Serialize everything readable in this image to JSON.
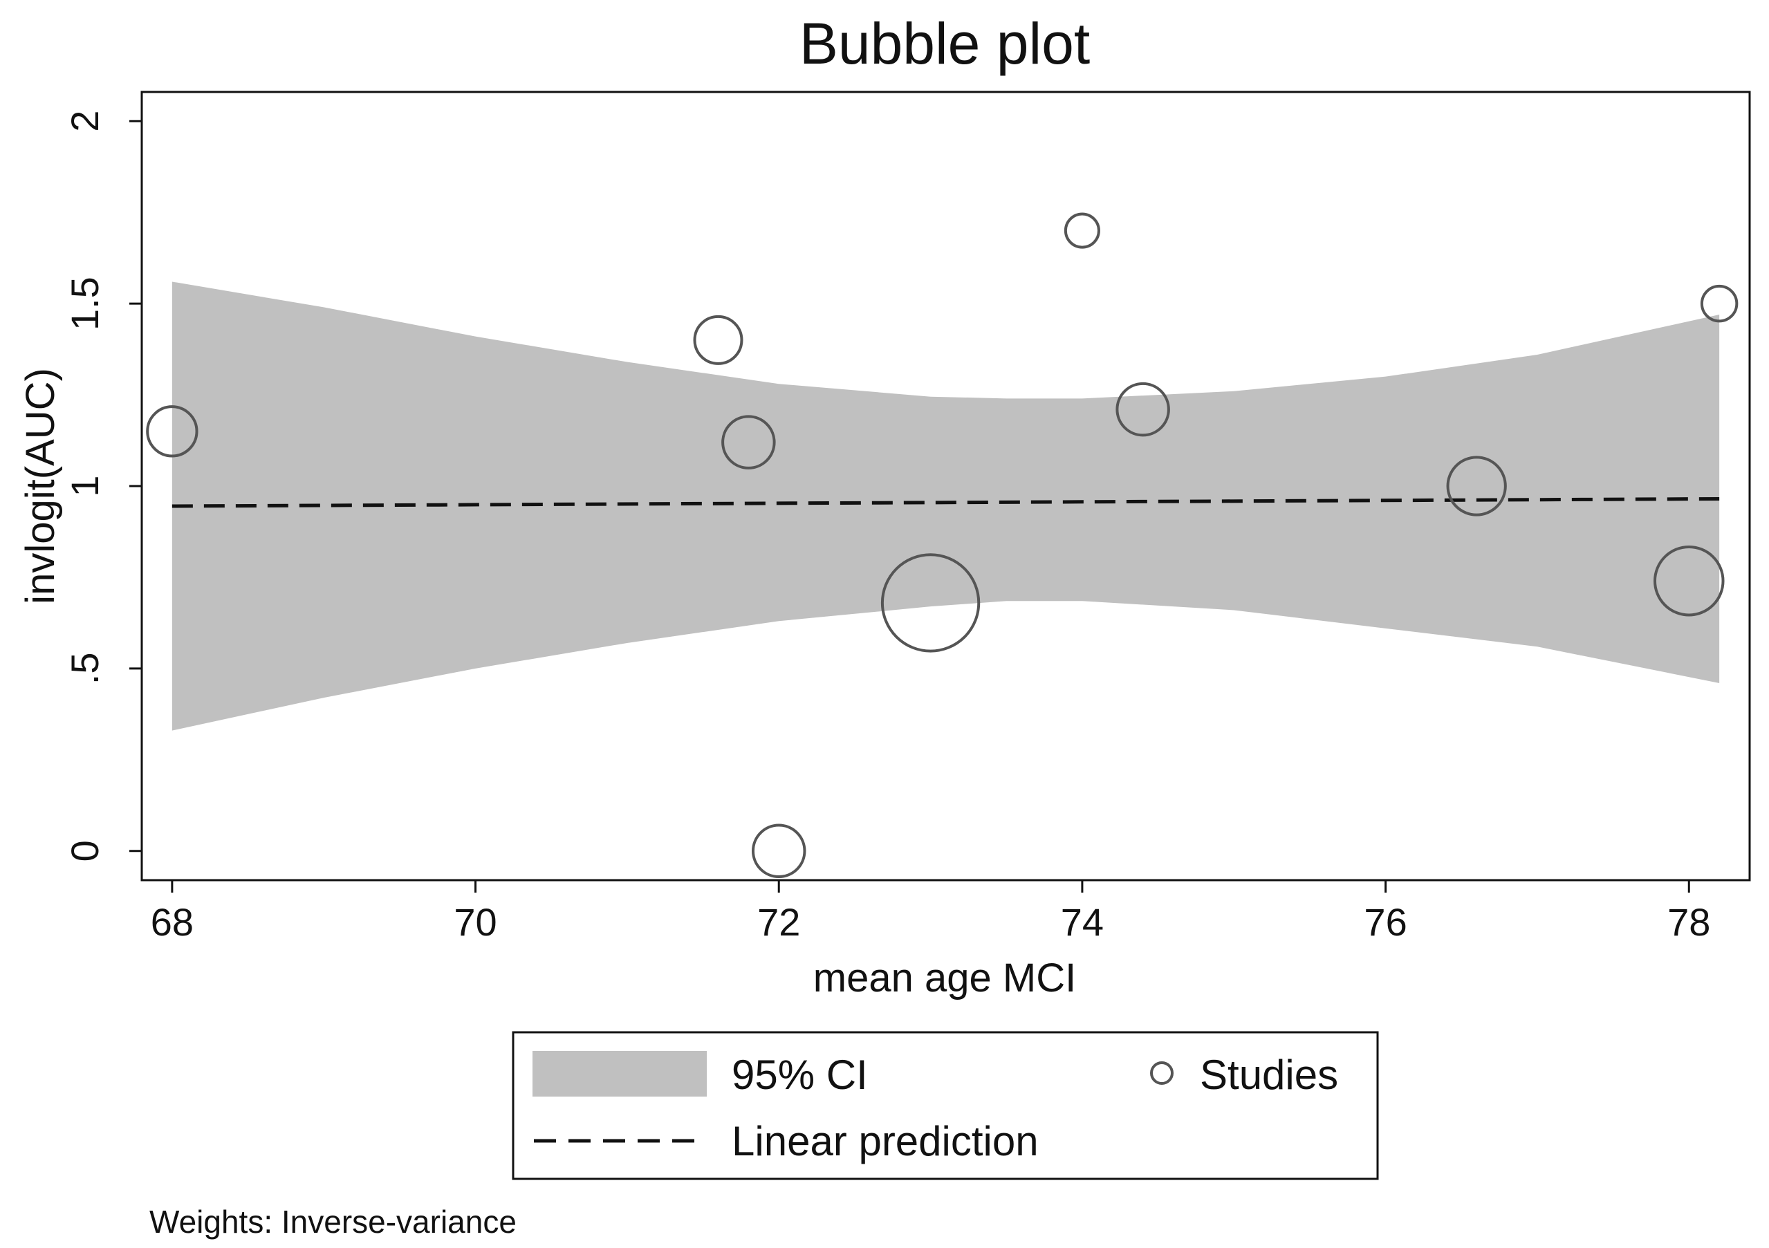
{
  "chart_data": {
    "type": "scatter",
    "title": "Bubble plot",
    "xlabel": "mean age MCI",
    "ylabel": "invlogit(AUC)",
    "xlim": [
      67.8,
      78.4
    ],
    "ylim": [
      -0.08,
      2.08
    ],
    "xticks": [
      68,
      70,
      72,
      74,
      76,
      78
    ],
    "xtick_labels": [
      "68",
      "70",
      "72",
      "74",
      "76",
      "78"
    ],
    "yticks": [
      0,
      0.5,
      1,
      1.5,
      2
    ],
    "ytick_labels": [
      "0",
      ".5",
      "1",
      "1.5",
      "2"
    ],
    "grid": false,
    "studies": {
      "name": "Studies",
      "points": [
        {
          "x": 68.0,
          "y": 1.15,
          "weight": 1.1
        },
        {
          "x": 71.6,
          "y": 1.4,
          "weight": 1.0
        },
        {
          "x": 71.8,
          "y": 1.12,
          "weight": 1.2
        },
        {
          "x": 72.0,
          "y": 0.0,
          "weight": 1.2
        },
        {
          "x": 73.0,
          "y": 0.68,
          "weight": 4.2
        },
        {
          "x": 74.0,
          "y": 1.7,
          "weight": 0.5
        },
        {
          "x": 74.4,
          "y": 1.21,
          "weight": 1.2
        },
        {
          "x": 76.6,
          "y": 1.0,
          "weight": 1.5
        },
        {
          "x": 78.0,
          "y": 0.74,
          "weight": 2.1
        },
        {
          "x": 78.2,
          "y": 1.5,
          "weight": 0.55
        }
      ]
    },
    "linear_prediction": {
      "name": "Linear prediction",
      "x": [
        68.0,
        78.2
      ],
      "y": [
        0.945,
        0.965
      ]
    },
    "confidence_band": {
      "name": "95% CI",
      "x": [
        68.0,
        69.0,
        70.0,
        71.0,
        72.0,
        73.0,
        73.5,
        74.0,
        75.0,
        76.0,
        77.0,
        78.2
      ],
      "upper": [
        1.56,
        1.49,
        1.41,
        1.34,
        1.28,
        1.245,
        1.24,
        1.24,
        1.26,
        1.3,
        1.36,
        1.47
      ],
      "lower": [
        0.33,
        0.42,
        0.5,
        0.57,
        0.63,
        0.67,
        0.685,
        0.685,
        0.66,
        0.61,
        0.56,
        0.46
      ]
    },
    "legend": {
      "position": "bottom",
      "entries": [
        "95% CI",
        "Studies",
        "Linear prediction"
      ]
    },
    "note": "Weights: Inverse-variance",
    "colors": {
      "band": "#c0c0c0",
      "marker": "#555555",
      "line": "#111111",
      "axis": "#111111"
    }
  }
}
